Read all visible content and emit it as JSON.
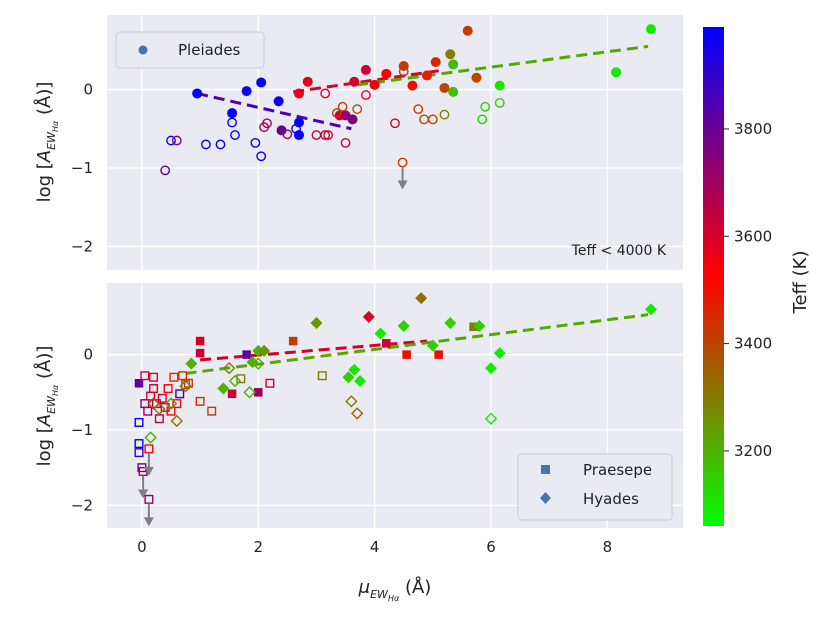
{
  "chart_data": [
    {
      "type": "scatter",
      "panel": "top",
      "ylabel": "log [A_{EW_{Hα}} (Å)]",
      "xlim": [
        -0.6,
        9.3
      ],
      "ylim": [
        -2.3,
        0.95
      ],
      "yticks": [
        -2,
        -1,
        0
      ],
      "ytick_labels": [
        "−2",
        "−1",
        "0"
      ],
      "annotation": "Teff < 4000 K",
      "legend": [
        {
          "label": "Pleiades",
          "marker": "circle"
        }
      ],
      "fits": [
        {
          "x": [
            0.95,
            3.6
          ],
          "y": [
            -0.05,
            -0.5
          ],
          "teff": 3850
        },
        {
          "x": [
            2.6,
            5.2
          ],
          "y": [
            -0.03,
            0.25
          ],
          "teff": 3600
        },
        {
          "x": [
            3.7,
            8.7
          ],
          "y": [
            0.06,
            0.55
          ],
          "teff": 3220
        }
      ],
      "upper_limits": [
        {
          "x": 4.48,
          "y": -0.93,
          "teff": 3420
        }
      ],
      "points": [
        {
          "x": 0.95,
          "y": -0.05,
          "teff": 3980,
          "filled": true
        },
        {
          "x": 1.55,
          "y": -0.3,
          "teff": 3980,
          "filled": true
        },
        {
          "x": 1.8,
          "y": -0.02,
          "teff": 3960,
          "filled": true
        },
        {
          "x": 2.05,
          "y": 0.09,
          "teff": 3980,
          "filled": true
        },
        {
          "x": 2.35,
          "y": -0.15,
          "teff": 3970,
          "filled": true
        },
        {
          "x": 2.7,
          "y": -0.42,
          "teff": 3980,
          "filled": true
        },
        {
          "x": 2.7,
          "y": -0.58,
          "teff": 3980,
          "filled": true
        },
        {
          "x": 2.4,
          "y": -0.52,
          "teff": 3800,
          "filled": true
        },
        {
          "x": 2.7,
          "y": -0.05,
          "teff": 3560,
          "filled": true
        },
        {
          "x": 2.85,
          "y": 0.1,
          "teff": 3580,
          "filled": true
        },
        {
          "x": 3.4,
          "y": -0.33,
          "teff": 3620,
          "filled": true
        },
        {
          "x": 3.5,
          "y": -0.33,
          "teff": 3720,
          "filled": true
        },
        {
          "x": 3.62,
          "y": -0.38,
          "teff": 3760,
          "filled": true
        },
        {
          "x": 3.65,
          "y": 0.1,
          "teff": 3600,
          "filled": true
        },
        {
          "x": 3.85,
          "y": 0.25,
          "teff": 3620,
          "filled": true
        },
        {
          "x": 4.0,
          "y": 0.06,
          "teff": 3560,
          "filled": true
        },
        {
          "x": 4.2,
          "y": 0.2,
          "teff": 3520,
          "filled": true
        },
        {
          "x": 4.5,
          "y": 0.3,
          "teff": 3420,
          "filled": true
        },
        {
          "x": 4.65,
          "y": 0.05,
          "teff": 3500,
          "filled": true
        },
        {
          "x": 4.9,
          "y": 0.18,
          "teff": 3470,
          "filled": true
        },
        {
          "x": 5.05,
          "y": 0.35,
          "teff": 3450,
          "filled": true
        },
        {
          "x": 5.2,
          "y": 0.02,
          "teff": 3400,
          "filled": true
        },
        {
          "x": 5.3,
          "y": 0.45,
          "teff": 3300,
          "filled": true
        },
        {
          "x": 5.35,
          "y": 0.32,
          "teff": 3180,
          "filled": true
        },
        {
          "x": 5.35,
          "y": -0.03,
          "teff": 3180,
          "filled": true
        },
        {
          "x": 5.6,
          "y": 0.75,
          "teff": 3420,
          "filled": true
        },
        {
          "x": 5.75,
          "y": 0.15,
          "teff": 3400,
          "filled": true
        },
        {
          "x": 6.15,
          "y": 0.05,
          "teff": 3100,
          "filled": true
        },
        {
          "x": 8.15,
          "y": 0.22,
          "teff": 3100,
          "filled": true
        },
        {
          "x": 8.75,
          "y": 0.77,
          "teff": 3100,
          "filled": true
        },
        {
          "x": 0.4,
          "y": -1.03,
          "teff": 3820,
          "filled": false
        },
        {
          "x": 0.5,
          "y": -0.65,
          "teff": 3980,
          "filled": false
        },
        {
          "x": 0.6,
          "y": -0.65,
          "teff": 3760,
          "filled": false
        },
        {
          "x": 1.1,
          "y": -0.7,
          "teff": 3980,
          "filled": false
        },
        {
          "x": 1.35,
          "y": -0.7,
          "teff": 3980,
          "filled": false
        },
        {
          "x": 1.55,
          "y": -0.42,
          "teff": 3980,
          "filled": false
        },
        {
          "x": 1.6,
          "y": -0.58,
          "teff": 3980,
          "filled": false
        },
        {
          "x": 1.95,
          "y": -0.68,
          "teff": 3980,
          "filled": false
        },
        {
          "x": 2.05,
          "y": -0.85,
          "teff": 3980,
          "filled": false
        },
        {
          "x": 2.1,
          "y": -0.48,
          "teff": 3700,
          "filled": false
        },
        {
          "x": 2.15,
          "y": -0.43,
          "teff": 3660,
          "filled": false
        },
        {
          "x": 2.5,
          "y": -0.57,
          "teff": 3700,
          "filled": false
        },
        {
          "x": 2.65,
          "y": -0.5,
          "teff": 3980,
          "filled": false
        },
        {
          "x": 3.0,
          "y": -0.58,
          "teff": 3640,
          "filled": false
        },
        {
          "x": 3.15,
          "y": -0.58,
          "teff": 3620,
          "filled": false
        },
        {
          "x": 3.2,
          "y": -0.58,
          "teff": 3600,
          "filled": false
        },
        {
          "x": 3.15,
          "y": -0.05,
          "teff": 3600,
          "filled": false
        },
        {
          "x": 3.35,
          "y": -0.3,
          "teff": 3420,
          "filled": false
        },
        {
          "x": 3.45,
          "y": -0.22,
          "teff": 3420,
          "filled": false
        },
        {
          "x": 3.5,
          "y": -0.68,
          "teff": 3600,
          "filled": false
        },
        {
          "x": 3.7,
          "y": -0.25,
          "teff": 3380,
          "filled": false
        },
        {
          "x": 3.85,
          "y": -0.07,
          "teff": 3560,
          "filled": false
        },
        {
          "x": 4.35,
          "y": -0.43,
          "teff": 3620,
          "filled": false
        },
        {
          "x": 4.5,
          "y": 0.23,
          "teff": 3420,
          "filled": false
        },
        {
          "x": 4.75,
          "y": -0.25,
          "teff": 3420,
          "filled": false
        },
        {
          "x": 4.85,
          "y": -0.38,
          "teff": 3380,
          "filled": false
        },
        {
          "x": 5.0,
          "y": -0.38,
          "teff": 3400,
          "filled": false
        },
        {
          "x": 5.2,
          "y": -0.32,
          "teff": 3300,
          "filled": false
        },
        {
          "x": 5.85,
          "y": -0.38,
          "teff": 3150,
          "filled": false
        },
        {
          "x": 5.9,
          "y": -0.22,
          "teff": 3150,
          "filled": false
        },
        {
          "x": 6.15,
          "y": -0.17,
          "teff": 3150,
          "filled": false
        }
      ]
    },
    {
      "type": "scatter",
      "panel": "bottom",
      "xlabel": "μ_{EW_{Hα}} (Å)",
      "ylabel": "log [A_{EW_{Hα}} (Å)]",
      "xlim": [
        -0.6,
        9.3
      ],
      "ylim": [
        -2.3,
        0.95
      ],
      "xticks": [
        0,
        2,
        4,
        6,
        8
      ],
      "xtick_labels": [
        "0",
        "2",
        "4",
        "6",
        "8"
      ],
      "yticks": [
        -2,
        -1,
        0
      ],
      "ytick_labels": [
        "−2",
        "−1",
        "0"
      ],
      "legend": [
        {
          "label": "Praesepe",
          "marker": "square"
        },
        {
          "label": "Hyades",
          "marker": "diamond"
        }
      ],
      "fits": [
        {
          "x": 1.0,
          "y_end": 0,
          "xs": [
            1.0,
            4.9
          ],
          "ys": [
            -0.07,
            0.18
          ],
          "teff": 3600
        },
        {
          "xs": [
            0.75,
            8.7
          ],
          "ys": [
            -0.25,
            0.53
          ],
          "teff": 3220
        }
      ],
      "upper_limits": [
        {
          "x": 0.02,
          "y": -1.55,
          "teff": 3700
        },
        {
          "x": 0.12,
          "y": -1.25,
          "teff": 3500
        },
        {
          "x": 0.12,
          "y": -1.92,
          "teff": 3700
        }
      ],
      "points_praesepe": [
        {
          "x": -0.05,
          "y": -0.38,
          "teff": 3820,
          "filled": true
        },
        {
          "x": 1.0,
          "y": 0.18,
          "teff": 3600,
          "filled": true
        },
        {
          "x": 1.0,
          "y": 0.02,
          "teff": 3620,
          "filled": true
        },
        {
          "x": 1.55,
          "y": -0.52,
          "teff": 3620,
          "filled": true
        },
        {
          "x": 1.8,
          "y": 0.0,
          "teff": 3820,
          "filled": true
        },
        {
          "x": 2.0,
          "y": -0.5,
          "teff": 3700,
          "filled": true
        },
        {
          "x": 2.6,
          "y": 0.18,
          "teff": 3420,
          "filled": true
        },
        {
          "x": 4.2,
          "y": 0.15,
          "teff": 3620,
          "filled": true
        },
        {
          "x": 4.55,
          "y": 0.0,
          "teff": 3500,
          "filled": true
        },
        {
          "x": 5.1,
          "y": 0.0,
          "teff": 3500,
          "filled": true
        },
        {
          "x": 5.7,
          "y": 0.37,
          "teff": 3300,
          "filled": true
        },
        {
          "x": -0.05,
          "y": -0.9,
          "teff": 3980,
          "filled": false
        },
        {
          "x": -0.05,
          "y": -1.18,
          "teff": 3980,
          "filled": false
        },
        {
          "x": -0.05,
          "y": -1.3,
          "teff": 3900,
          "filled": false
        },
        {
          "x": 0.0,
          "y": -1.5,
          "teff": 3800,
          "filled": false
        },
        {
          "x": 0.05,
          "y": -0.65,
          "teff": 3800,
          "filled": false
        },
        {
          "x": 0.05,
          "y": -0.28,
          "teff": 3600,
          "filled": false
        },
        {
          "x": 0.1,
          "y": -0.75,
          "teff": 3700,
          "filled": false
        },
        {
          "x": 0.15,
          "y": -0.55,
          "teff": 3620,
          "filled": false
        },
        {
          "x": 0.2,
          "y": -0.3,
          "teff": 3620,
          "filled": false
        },
        {
          "x": 0.2,
          "y": -0.45,
          "teff": 3600,
          "filled": false
        },
        {
          "x": 0.25,
          "y": -0.65,
          "teff": 3650,
          "filled": false
        },
        {
          "x": 0.3,
          "y": -0.85,
          "teff": 3650,
          "filled": false
        },
        {
          "x": 0.35,
          "y": -0.58,
          "teff": 3600,
          "filled": false
        },
        {
          "x": 0.4,
          "y": -0.7,
          "teff": 3600,
          "filled": false
        },
        {
          "x": 0.45,
          "y": -0.45,
          "teff": 3540,
          "filled": false
        },
        {
          "x": 0.5,
          "y": -0.75,
          "teff": 3520,
          "filled": false
        },
        {
          "x": 0.55,
          "y": -0.3,
          "teff": 3450,
          "filled": false
        },
        {
          "x": 0.6,
          "y": -0.65,
          "teff": 3500,
          "filled": false
        },
        {
          "x": 0.65,
          "y": -0.52,
          "teff": 3900,
          "filled": false
        },
        {
          "x": 0.7,
          "y": -0.28,
          "teff": 3420,
          "filled": false
        },
        {
          "x": 0.75,
          "y": -0.4,
          "teff": 3400,
          "filled": false
        },
        {
          "x": 0.8,
          "y": -0.38,
          "teff": 3420,
          "filled": false
        },
        {
          "x": 1.0,
          "y": -0.62,
          "teff": 3450,
          "filled": false
        },
        {
          "x": 1.2,
          "y": -0.75,
          "teff": 3420,
          "filled": false
        },
        {
          "x": 1.7,
          "y": -0.32,
          "teff": 3300,
          "filled": false
        },
        {
          "x": 2.2,
          "y": -0.38,
          "teff": 3600,
          "filled": false
        },
        {
          "x": 3.1,
          "y": -0.28,
          "teff": 3300,
          "filled": false
        }
      ],
      "points_hyades": [
        {
          "x": 0.85,
          "y": -0.12,
          "teff": 3200,
          "filled": true
        },
        {
          "x": 1.4,
          "y": -0.45,
          "teff": 3200,
          "filled": true
        },
        {
          "x": 1.9,
          "y": -0.1,
          "teff": 3200,
          "filled": true
        },
        {
          "x": 2.0,
          "y": 0.05,
          "teff": 3200,
          "filled": true
        },
        {
          "x": 2.1,
          "y": 0.05,
          "teff": 3250,
          "filled": true
        },
        {
          "x": 3.0,
          "y": 0.42,
          "teff": 3250,
          "filled": true
        },
        {
          "x": 3.55,
          "y": -0.3,
          "teff": 3150,
          "filled": true
        },
        {
          "x": 3.65,
          "y": -0.2,
          "teff": 3100,
          "filled": true
        },
        {
          "x": 3.75,
          "y": -0.35,
          "teff": 3100,
          "filled": true
        },
        {
          "x": 3.9,
          "y": 0.5,
          "teff": 3600,
          "filled": true
        },
        {
          "x": 4.1,
          "y": 0.28,
          "teff": 3100,
          "filled": true
        },
        {
          "x": 4.5,
          "y": 0.38,
          "teff": 3150,
          "filled": true
        },
        {
          "x": 4.8,
          "y": 0.75,
          "teff": 3320,
          "filled": true
        },
        {
          "x": 5.0,
          "y": 0.12,
          "teff": 3150,
          "filled": true
        },
        {
          "x": 5.3,
          "y": 0.42,
          "teff": 3150,
          "filled": true
        },
        {
          "x": 5.8,
          "y": 0.38,
          "teff": 3150,
          "filled": true
        },
        {
          "x": 6.0,
          "y": -0.18,
          "teff": 3100,
          "filled": true
        },
        {
          "x": 6.15,
          "y": 0.02,
          "teff": 3100,
          "filled": true
        },
        {
          "x": 8.75,
          "y": 0.6,
          "teff": 3100,
          "filled": true
        },
        {
          "x": 0.15,
          "y": -1.1,
          "teff": 3200,
          "filled": false
        },
        {
          "x": 0.2,
          "y": -0.65,
          "teff": 3400,
          "filled": false
        },
        {
          "x": 0.3,
          "y": -0.72,
          "teff": 3300,
          "filled": false
        },
        {
          "x": 0.5,
          "y": -0.65,
          "teff": 3250,
          "filled": false
        },
        {
          "x": 0.6,
          "y": -0.88,
          "teff": 3320,
          "filled": false
        },
        {
          "x": 0.75,
          "y": -0.42,
          "teff": 3300,
          "filled": false
        },
        {
          "x": 1.5,
          "y": -0.18,
          "teff": 3300,
          "filled": false
        },
        {
          "x": 1.6,
          "y": -0.35,
          "teff": 3200,
          "filled": false
        },
        {
          "x": 1.85,
          "y": -0.5,
          "teff": 3200,
          "filled": false
        },
        {
          "x": 2.0,
          "y": -0.12,
          "teff": 3200,
          "filled": false
        },
        {
          "x": 3.6,
          "y": -0.62,
          "teff": 3300,
          "filled": false
        },
        {
          "x": 3.7,
          "y": -0.78,
          "teff": 3350,
          "filled": false
        },
        {
          "x": 6.0,
          "y": -0.85,
          "teff": 3100,
          "filled": false
        }
      ]
    },
    {
      "type": "colorbar",
      "label": "Teff (K)",
      "range": [
        3060,
        3990
      ],
      "ticks": [
        3200,
        3400,
        3600,
        3800
      ],
      "tick_labels": [
        "3200",
        "3400",
        "3600",
        "3800"
      ],
      "colormap": [
        "#00ff00",
        "#ff0000",
        "#0000ff"
      ]
    }
  ],
  "colors": {
    "panel_bg": "#eaeaf2",
    "grid": "#ffffff",
    "upper_limit": "#808080",
    "legend_marker": "#4c72b0"
  },
  "labels": {
    "top_ylabel_main": "log [",
    "top_ylabel_sub": "EW",
    "top_ylabel_subsub": "Hα",
    "top_ylabel_tail": " (Å)]",
    "bottom_ylabel_main": "log [",
    "bottom_ylabel_sub": "EW",
    "bottom_ylabel_subsub": "Hα",
    "bottom_ylabel_tail": " (Å)]",
    "ylabel_A": "A",
    "xlabel_mu": "μ",
    "xlabel_sub": "EW",
    "xlabel_subsub": "Hα",
    "xlabel_tail": " (Å)",
    "annotation": "Teff < 4000 K",
    "legend_pleiades": "Pleiades",
    "legend_praesepe": "Praesepe",
    "legend_hyades": "Hyades",
    "cbar_label": "Teff (K)"
  }
}
